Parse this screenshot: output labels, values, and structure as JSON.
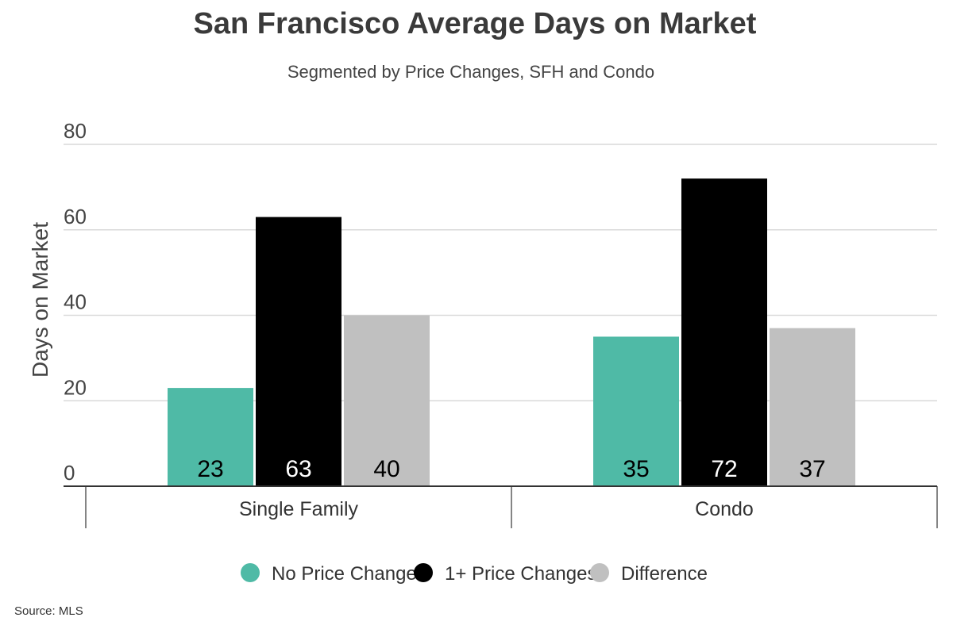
{
  "chart_data": {
    "type": "bar",
    "title": "San Francisco Average Days on Market",
    "subtitle": "Segmented by Price Changes, SFH and Condo",
    "ylabel": "Days on Market",
    "xlabel": "",
    "ylim": [
      0,
      80
    ],
    "yticks": [
      0,
      20,
      40,
      60,
      80
    ],
    "grid": true,
    "legend_position": "bottom",
    "categories": [
      "Single Family",
      "Condo"
    ],
    "series": [
      {
        "name": "No Price Change",
        "color": "#4fbaa6",
        "values": [
          23,
          35
        ]
      },
      {
        "name": "1+ Price Changes",
        "color": "#000000",
        "values": [
          63,
          72
        ]
      },
      {
        "name": "Difference",
        "color": "#c0c0c0",
        "values": [
          40,
          37
        ]
      }
    ],
    "source": "Source: MLS"
  }
}
